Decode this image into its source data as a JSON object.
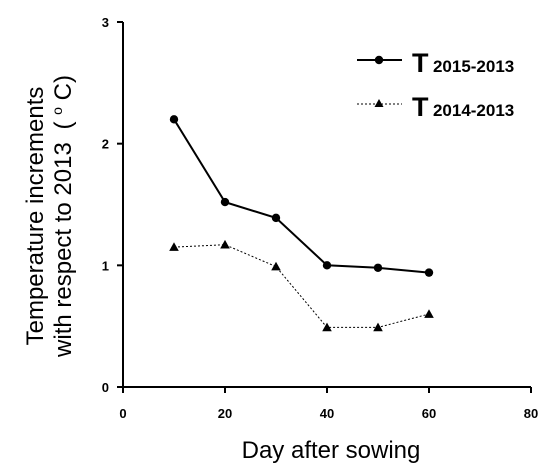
{
  "chart_data": {
    "type": "line",
    "xlabel": "Day after sowing",
    "ylabel_line1": "Temperature increments",
    "ylabel_line2": "with respect to 2013",
    "ylabel_unit_open": "(",
    "ylabel_unit_sup": "o",
    "ylabel_unit_close": "C)",
    "xlim": [
      0,
      80
    ],
    "ylim": [
      0,
      3
    ],
    "xticks": [
      0,
      20,
      40,
      60,
      80
    ],
    "yticks": [
      0,
      1,
      2,
      3
    ],
    "grid": false,
    "legend_position": "top-right",
    "x": [
      10,
      20,
      30,
      40,
      50,
      60
    ],
    "series": [
      {
        "name_main": "T",
        "name_sub": "2015-2013",
        "marker": "circle",
        "line_style": "solid",
        "color": "#000000",
        "values": [
          2.2,
          1.52,
          1.39,
          1.0,
          0.98,
          0.94
        ]
      },
      {
        "name_main": "T",
        "name_sub": "2014-2013",
        "marker": "triangle",
        "line_style": "dashed",
        "color": "#000000",
        "values": [
          1.15,
          1.17,
          0.99,
          0.49,
          0.49,
          0.6
        ]
      }
    ]
  }
}
